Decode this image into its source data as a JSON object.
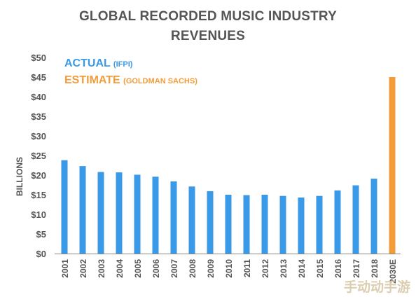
{
  "chart_data": {
    "type": "bar",
    "title_lines": [
      "GLOBAL RECORDED MUSIC INDUSTRY",
      "REVENUES"
    ],
    "xlabel": "",
    "ylabel": "BILLIONS",
    "ylim": [
      0,
      50
    ],
    "yticks": [
      "$0",
      "$5",
      "$10",
      "$15",
      "$20",
      "$25",
      "$30",
      "$35",
      "$40",
      "$45",
      "$50"
    ],
    "grid": false,
    "legend_placement": "top-left",
    "legend": [
      {
        "name": "ACTUAL",
        "detail": "(IFPI)",
        "color": "#3a9ae8"
      },
      {
        "name": "ESTIMATE",
        "detail": "(GOLDMAN SACHS)",
        "color": "#f39c3a"
      }
    ],
    "categories": [
      "2001",
      "2002",
      "2003",
      "2004",
      "2005",
      "2006",
      "2007",
      "2008",
      "2009",
      "2010",
      "2011",
      "2012",
      "2013",
      "2014",
      "2015",
      "2016",
      "2017",
      "2018",
      "2030E"
    ],
    "values": [
      23.8,
      22.3,
      20.8,
      20.7,
      20.1,
      19.6,
      18.4,
      17.1,
      15.9,
      15.0,
      14.9,
      15.0,
      14.7,
      14.3,
      14.7,
      16.1,
      17.4,
      19.1,
      45.0
    ],
    "series_index": [
      0,
      0,
      0,
      0,
      0,
      0,
      0,
      0,
      0,
      0,
      0,
      0,
      0,
      0,
      0,
      0,
      0,
      0,
      1
    ],
    "colors": {
      "actual": "#3a9ae8",
      "estimate": "#f39c3a",
      "axis_text": "#555555",
      "baseline": "#888888"
    }
  },
  "watermark": "手动动手游"
}
